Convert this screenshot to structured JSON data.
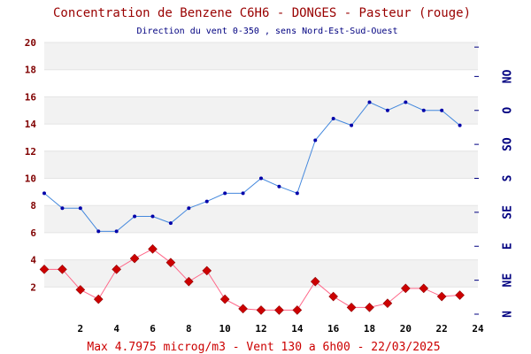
{
  "chart_data": {
    "type": "line",
    "title": "Concentration de Benzene C6H6  -   DONGES - Pasteur (rouge)",
    "subtitle": "Direction du vent 0-350 , sens Nord-Est-Sud-Ouest",
    "footer": "Max 4.7975 microg/m3 - Vent 130  a 6h00 - 22/03/2025",
    "xlim": [
      0,
      24
    ],
    "ylim": [
      0,
      20
    ],
    "x_ticks": [
      "2",
      "4",
      "6",
      "8",
      "10",
      "12",
      "14",
      "16",
      "18",
      "20",
      "22",
      "24"
    ],
    "y_ticks": [
      "2",
      "4",
      "6",
      "8",
      "10",
      "12",
      "14",
      "16",
      "18",
      "20"
    ],
    "right_axis_ticks": [
      "N",
      "NE",
      "E",
      "SE",
      "S",
      "SO",
      "O",
      "NO"
    ],
    "grid": "horizontal bands",
    "colors": {
      "title": "#990000",
      "subtitle": "#000080",
      "footer": "#cc0000",
      "left_ticks": "#800000",
      "right_ticks": "#000080",
      "band": "#f2f2f2",
      "benzene_line": "#ff6688",
      "benzene_marker": "#cc0000",
      "wind_line": "#4488dd",
      "wind_marker": "#0000aa"
    },
    "series": [
      {
        "name": "Benzene",
        "axis": "left",
        "x": [
          0,
          1,
          2,
          3,
          4,
          5,
          6,
          7,
          8,
          9,
          10,
          11,
          12,
          13,
          14,
          15,
          16,
          17,
          18,
          19,
          20,
          21,
          22,
          23
        ],
        "values": [
          3.3,
          3.3,
          1.8,
          1.1,
          3.3,
          4.1,
          4.8,
          3.8,
          2.4,
          3.2,
          1.1,
          0.4,
          0.3,
          0.3,
          0.3,
          2.4,
          1.3,
          0.5,
          0.5,
          0.8,
          1.9,
          1.9,
          1.3,
          1.4
        ]
      },
      {
        "name": "Vent",
        "axis": "right",
        "x": [
          0,
          1,
          2,
          3,
          4,
          5,
          6,
          7,
          8,
          9,
          10,
          11,
          12,
          13,
          14,
          15,
          16,
          17,
          18,
          19,
          20,
          21,
          22,
          23
        ],
        "values": [
          8.9,
          7.8,
          7.8,
          6.1,
          6.1,
          7.2,
          7.2,
          6.7,
          7.8,
          8.3,
          8.9,
          8.9,
          10.0,
          9.4,
          8.9,
          12.8,
          14.4,
          13.9,
          15.6,
          15.0,
          15.6,
          15.0,
          15.0,
          13.9
        ]
      }
    ]
  }
}
